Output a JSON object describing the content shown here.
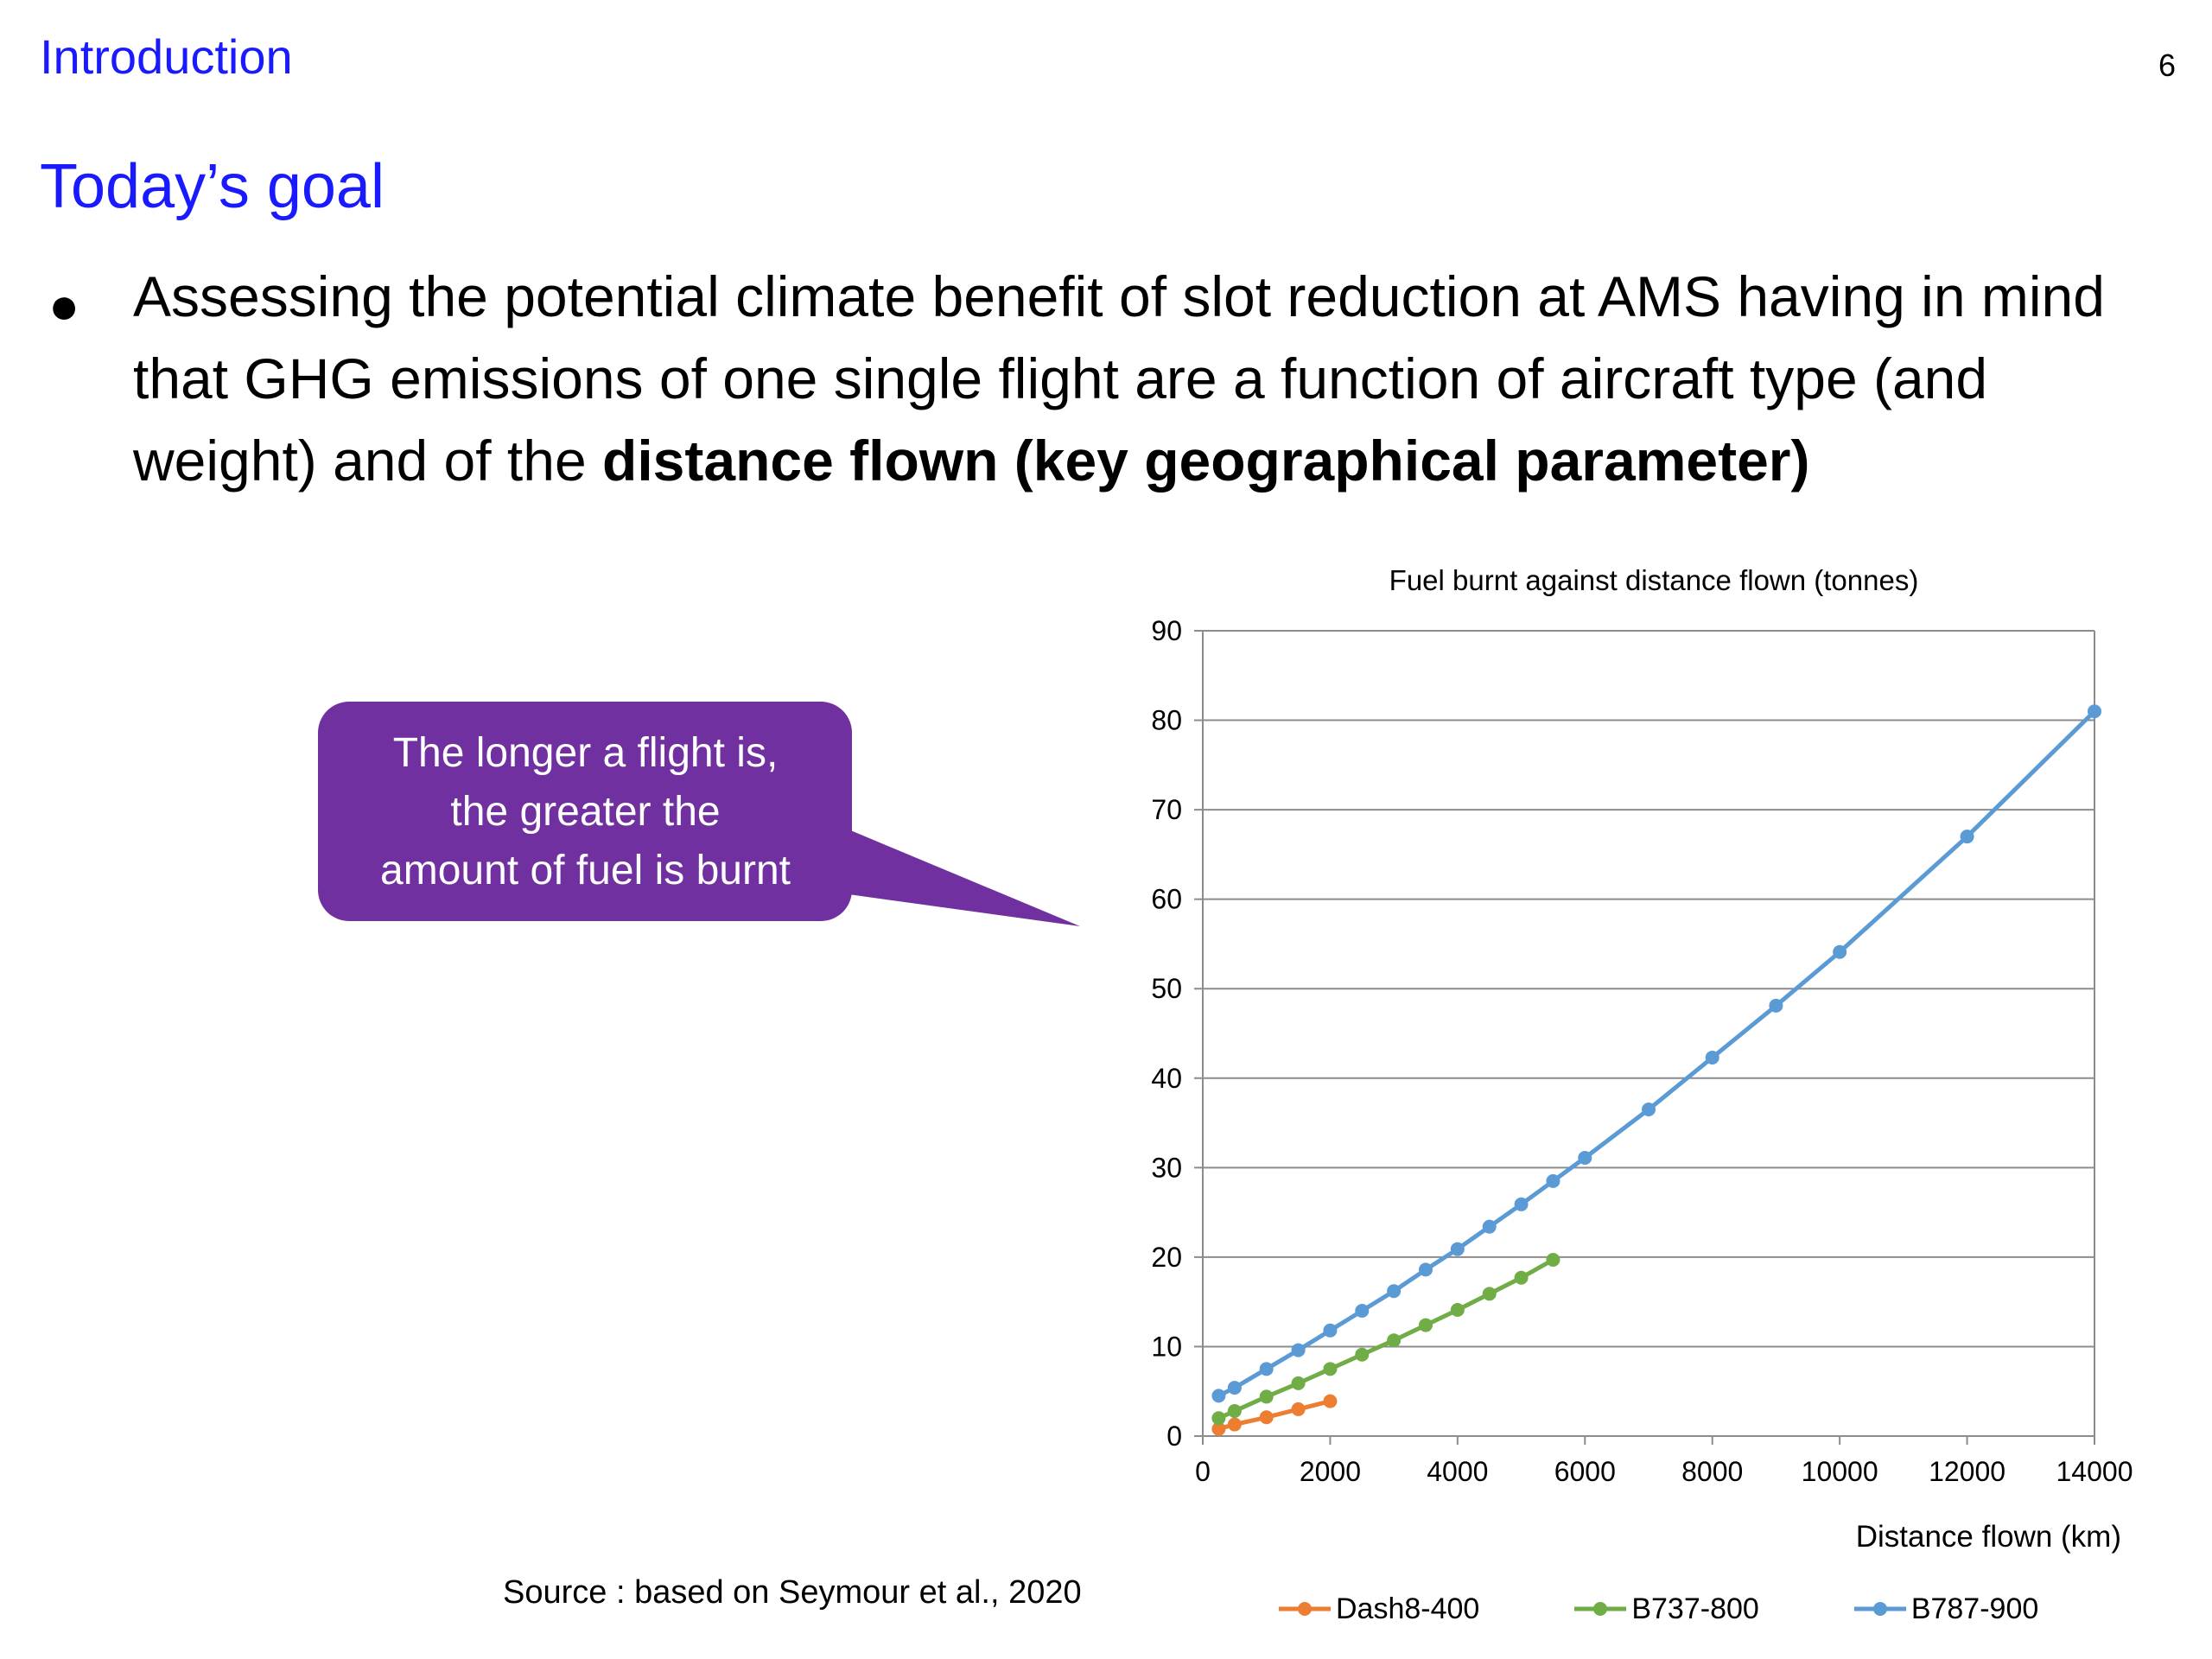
{
  "header": {
    "section_title": "Introduction",
    "page_number": "6"
  },
  "slide": {
    "heading": "Today’s goal",
    "bullet": {
      "text_start": "Assessing the potential climate benefit of slot reduction at AMS having in mind that GHG emissions of one single flight are a function of aircraft type (and weight) and of the ",
      "text_bold": "distance flown (key geographical parameter)"
    },
    "callout": {
      "lines": [
        "The longer a flight is,",
        "the greater the",
        "amount of fuel is burnt"
      ],
      "color": "#7030A0"
    },
    "source": "Source : based on Seymour et al., 2020"
  },
  "chart_data": {
    "type": "line",
    "title": "Fuel burnt against distance flown (tonnes)",
    "xlabel": "Distance flown (km)",
    "ylabel": "",
    "xlim": [
      0,
      14000
    ],
    "ylim": [
      0,
      90
    ],
    "xticks": [
      0,
      2000,
      4000,
      6000,
      8000,
      10000,
      12000,
      14000
    ],
    "yticks": [
      0,
      10,
      20,
      30,
      40,
      50,
      60,
      70,
      80,
      90
    ],
    "grid": "horizontal",
    "legend_position": "bottom",
    "series": [
      {
        "name": "Dash8-400",
        "color": "#ED7D31",
        "x": [
          250,
          500,
          1000,
          1500,
          2000
        ],
        "y": [
          0.8,
          1.3,
          2.1,
          3.0,
          3.9
        ]
      },
      {
        "name": "B737-800",
        "color": "#70AD47",
        "x": [
          250,
          500,
          1000,
          1500,
          2000,
          2500,
          3000,
          3500,
          4000,
          4500,
          5000,
          5500
        ],
        "y": [
          2.0,
          2.8,
          4.4,
          5.9,
          7.5,
          9.1,
          10.7,
          12.4,
          14.1,
          15.9,
          17.7,
          19.7
        ]
      },
      {
        "name": "B787-900",
        "color": "#5B9BD5",
        "x": [
          250,
          500,
          1000,
          1500,
          2000,
          2500,
          3000,
          3500,
          4000,
          4500,
          5000,
          5500,
          6000,
          7000,
          8000,
          9000,
          10000,
          12000,
          14000
        ],
        "y": [
          4.5,
          5.4,
          7.5,
          9.6,
          11.8,
          14.0,
          16.2,
          18.6,
          20.9,
          23.4,
          25.9,
          28.5,
          31.1,
          36.5,
          42.3,
          48.1,
          54.1,
          67.0,
          81.0
        ]
      }
    ]
  }
}
